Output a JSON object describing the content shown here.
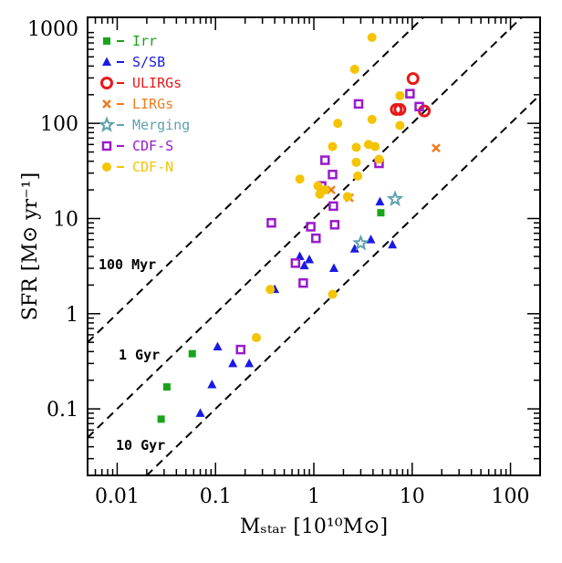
{
  "chart_data": {
    "type": "scatter",
    "xscale": "log",
    "yscale": "log",
    "xlim": [
      0.005,
      200
    ],
    "ylim": [
      0.02,
      1300
    ],
    "xticks": [
      0.01,
      0.1,
      1,
      10,
      100
    ],
    "xtick_labels": [
      "0.01",
      "0.1",
      "1",
      "10",
      "100"
    ],
    "yticks": [
      0.1,
      1,
      10,
      100,
      1000
    ],
    "ytick_labels": [
      "0.1",
      "1",
      "10",
      "100",
      "1000"
    ],
    "ylabel": "SFR [M⊙ yr⁻¹]",
    "xlabel": "Mₛₜₐᵣ [10¹⁰M⊙]",
    "legend_position": "top-left",
    "reference_lines": [
      {
        "label": "100 Myr",
        "timescale_gyr": 0.1
      },
      {
        "label": "1 Gyr",
        "timescale_gyr": 1
      },
      {
        "label": "10 Gyr",
        "timescale_gyr": 10
      }
    ],
    "series": [
      {
        "name": "Irr",
        "color": "#19a319",
        "marker": "square-filled",
        "points": [
          [
            0.028,
            0.078
          ],
          [
            0.032,
            0.17
          ],
          [
            0.058,
            0.38
          ],
          [
            4.8,
            11.5
          ]
        ]
      },
      {
        "name": "S/SB",
        "color": "#1a1ae6",
        "marker": "triangle-filled",
        "points": [
          [
            0.07,
            0.09
          ],
          [
            0.092,
            0.18
          ],
          [
            0.105,
            0.45
          ],
          [
            0.15,
            0.3
          ],
          [
            0.22,
            0.3
          ],
          [
            0.4,
            1.8
          ],
          [
            0.72,
            4.0
          ],
          [
            0.8,
            3.2
          ],
          [
            0.9,
            3.7
          ],
          [
            1.6,
            3.0
          ],
          [
            2.6,
            4.8
          ],
          [
            3.8,
            6.0
          ],
          [
            4.7,
            15.0
          ],
          [
            6.3,
            5.3
          ]
        ]
      },
      {
        "name": "ULIRGs",
        "color": "#e61919",
        "marker": "circle-open",
        "points": [
          [
            6.9,
            140
          ],
          [
            7.5,
            140
          ],
          [
            10.2,
            295
          ],
          [
            13.3,
            135
          ]
        ]
      },
      {
        "name": "LIRGs",
        "color": "#f07b1a",
        "marker": "cross",
        "points": [
          [
            1.5,
            20
          ],
          [
            2.3,
            16.5
          ],
          [
            17.5,
            55
          ]
        ]
      },
      {
        "name": "Merging",
        "color": "#5fa1ad",
        "marker": "star",
        "points": [
          [
            3.0,
            5.5
          ],
          [
            6.7,
            16
          ]
        ]
      },
      {
        "name": "CDF-S",
        "color": "#9a1acc",
        "marker": "square-open",
        "points": [
          [
            0.18,
            0.42
          ],
          [
            0.37,
            9.0
          ],
          [
            0.65,
            3.4
          ],
          [
            0.78,
            2.1
          ],
          [
            0.93,
            8.2
          ],
          [
            1.05,
            6.2
          ],
          [
            1.3,
            41
          ],
          [
            1.55,
            29
          ],
          [
            1.58,
            13.5
          ],
          [
            1.63,
            8.6
          ],
          [
            1.2,
            22
          ],
          [
            2.85,
            160
          ],
          [
            4.6,
            38
          ],
          [
            9.5,
            205
          ],
          [
            11.8,
            150
          ]
        ]
      },
      {
        "name": "CDF-N",
        "color": "#f5c400",
        "marker": "circle-filled",
        "points": [
          [
            0.26,
            0.56
          ],
          [
            0.36,
            1.8
          ],
          [
            0.72,
            26
          ],
          [
            1.1,
            22
          ],
          [
            1.15,
            18
          ],
          [
            1.3,
            20
          ],
          [
            1.55,
            1.6
          ],
          [
            1.55,
            57
          ],
          [
            1.75,
            100
          ],
          [
            2.2,
            17
          ],
          [
            2.6,
            370
          ],
          [
            2.7,
            56
          ],
          [
            2.7,
            39
          ],
          [
            2.8,
            28
          ],
          [
            3.6,
            60
          ],
          [
            3.9,
            800
          ],
          [
            3.9,
            110
          ],
          [
            4.2,
            57
          ],
          [
            4.6,
            42
          ],
          [
            7.5,
            195
          ],
          [
            7.5,
            95
          ]
        ]
      }
    ]
  }
}
